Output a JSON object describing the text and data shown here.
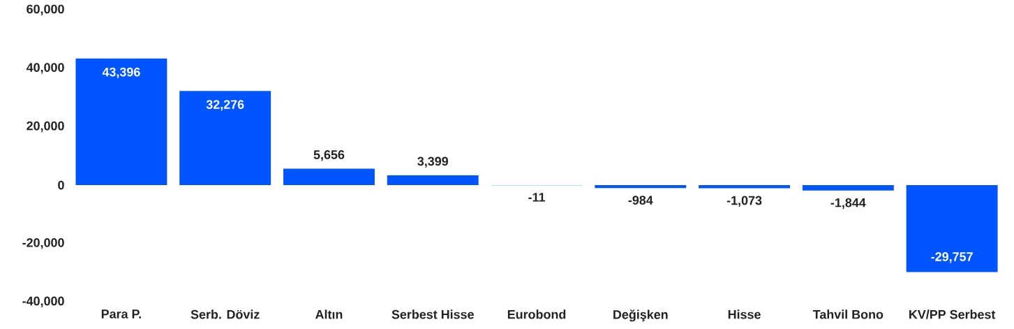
{
  "chart_data": {
    "type": "bar",
    "categories": [
      "Para P.",
      "Serb. Döviz",
      "Altın",
      "Serbest Hisse",
      "Eurobond",
      "Değişken",
      "Hisse",
      "Tahvil Bono",
      "KV/PP Serbest"
    ],
    "values": [
      43396,
      32276,
      5656,
      3399,
      -11,
      -984,
      -1073,
      -1844,
      -29757
    ],
    "value_labels": [
      "43,396",
      "32,276",
      "5,656",
      "3,399",
      "-11",
      "-984",
      "-1,073",
      "-1,844",
      "-29,757"
    ],
    "color": "#0055ff",
    "ylim": [
      -40000,
      60000
    ],
    "yticks": [
      {
        "value": -40000,
        "label": "-40,000"
      },
      {
        "value": -20000,
        "label": "-20,000"
      },
      {
        "value": 0,
        "label": "0"
      },
      {
        "value": 20000,
        "label": "20,000"
      },
      {
        "value": 40000,
        "label": "40,000"
      },
      {
        "value": 60000,
        "label": "60,000"
      }
    ],
    "grid": false
  }
}
